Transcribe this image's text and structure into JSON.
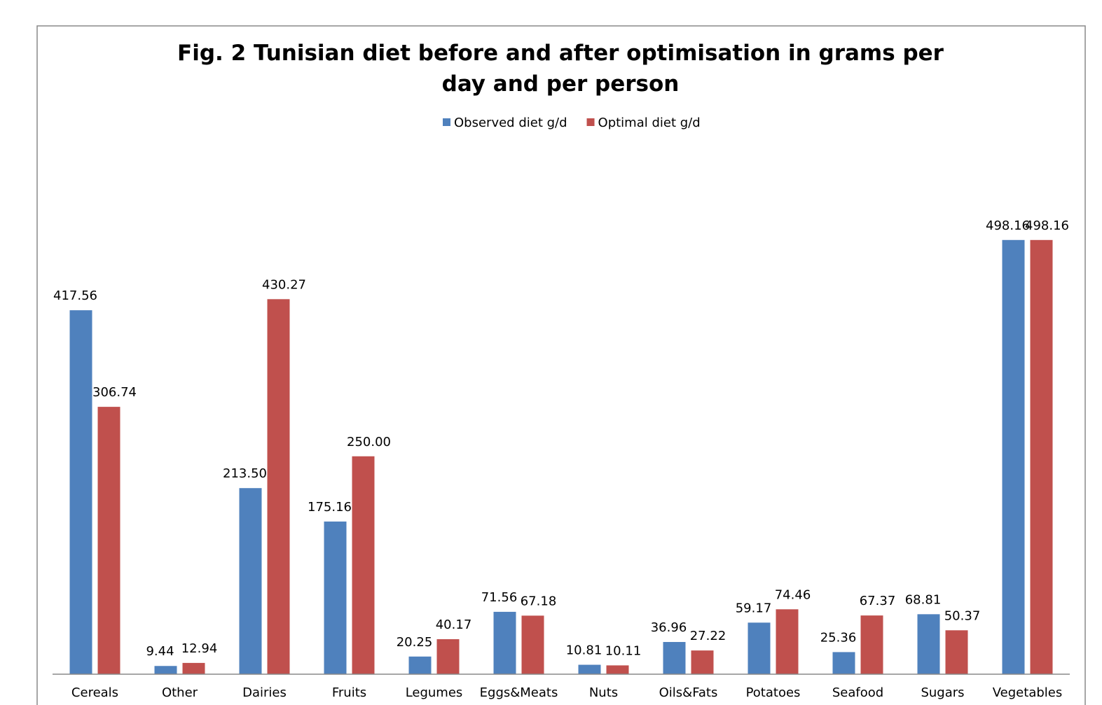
{
  "chart_data": {
    "type": "bar",
    "title": "Fig. 2 Tunisian diet before and after optimisation in grams per day and per person",
    "categories": [
      "Cereals",
      "Other",
      "Dairies",
      "Fruits",
      "Legumes",
      "Eggs&Meats",
      "Nuts",
      "Oils&Fats",
      "Potatoes",
      "Seafood",
      "Sugars",
      "Vegetables"
    ],
    "series": [
      {
        "name": "Observed diet g/d",
        "color": "#4f81bd",
        "values": [
          417.56,
          9.44,
          213.5,
          175.16,
          20.25,
          71.56,
          10.81,
          36.96,
          59.17,
          25.36,
          68.81,
          498.16
        ],
        "value_labels": [
          "417.56",
          "9.44",
          "213.50",
          "175.16",
          "20.25",
          "71.56",
          "10.81",
          "36.96",
          "59.17",
          "25.36",
          "68.81",
          "498.16"
        ]
      },
      {
        "name": "Optimal diet g/d",
        "color": "#c0504d",
        "values": [
          306.74,
          12.94,
          430.27,
          250,
          40.17,
          67.18,
          10.11,
          27.22,
          74.46,
          67.37,
          50.37,
          498.16
        ],
        "value_labels": [
          "306.74",
          "12.94",
          "430.27",
          "250.00",
          "40.17",
          "67.18",
          "10.11",
          "27.22",
          "74.46",
          "67.37",
          "50.37",
          "498.16"
        ]
      }
    ],
    "ylim": [
      0,
      600
    ],
    "legend": "top"
  }
}
